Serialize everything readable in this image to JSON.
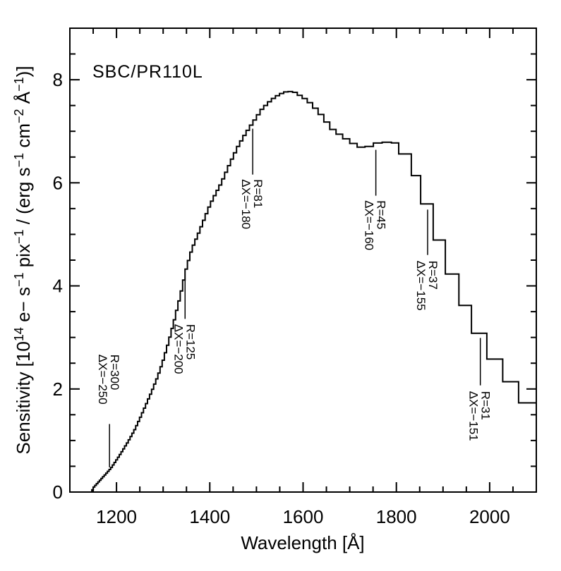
{
  "page": {
    "background": "#ffffff",
    "foreground": "#000000"
  },
  "chart_data": {
    "type": "line",
    "subtype": "step-histogram spectral sensitivity curve",
    "title": "SBC/PR110L",
    "xlabel": "Wavelength [Å]",
    "ylabel_plain": "Sensitivity [10¹⁴ e− s⁻¹ pix⁻¹ / (erg s⁻¹ cm⁻² Å⁻¹)]",
    "ylabel_segments": [
      {
        "t": "Sensitivity [10"
      },
      {
        "t": "14",
        "sup": true
      },
      {
        "t": " e− s"
      },
      {
        "t": "−1",
        "sup": true
      },
      {
        "t": " pix"
      },
      {
        "t": "−1",
        "sup": true
      },
      {
        "t": " / (erg s"
      },
      {
        "t": "−1",
        "sup": true
      },
      {
        "t": " cm"
      },
      {
        "t": "−2",
        "sup": true
      },
      {
        "t": " Å"
      },
      {
        "t": "−1",
        "sup": true
      },
      {
        "t": ")]"
      }
    ],
    "xlim": [
      1100,
      2100
    ],
    "ylim": [
      0,
      9
    ],
    "x_major_ticks": [
      1200,
      1400,
      1600,
      1800,
      2000
    ],
    "x_minor_step": 50,
    "y_major_ticks": [
      0,
      2,
      4,
      6,
      8
    ],
    "y_minor_step": 0.5,
    "grid": false,
    "frame": "box with inward ticks on all four sides",
    "curve": {
      "start_wavelength": 1147,
      "end_wavelength": 2100,
      "anchors": [
        [
          1147,
          0.02
        ],
        [
          1152,
          0.1
        ],
        [
          1162,
          0.2
        ],
        [
          1175,
          0.33
        ],
        [
          1188,
          0.46
        ],
        [
          1200,
          0.62
        ],
        [
          1212,
          0.79
        ],
        [
          1225,
          0.98
        ],
        [
          1238,
          1.19
        ],
        [
          1250,
          1.42
        ],
        [
          1262,
          1.67
        ],
        [
          1275,
          1.94
        ],
        [
          1288,
          2.23
        ],
        [
          1300,
          2.55
        ],
        [
          1312,
          2.92
        ],
        [
          1325,
          3.37
        ],
        [
          1338,
          3.85
        ],
        [
          1350,
          4.35
        ],
        [
          1362,
          4.72
        ],
        [
          1375,
          5.0
        ],
        [
          1388,
          5.29
        ],
        [
          1400,
          5.56
        ],
        [
          1412,
          5.78
        ],
        [
          1425,
          6.0
        ],
        [
          1438,
          6.27
        ],
        [
          1450,
          6.51
        ],
        [
          1462,
          6.73
        ],
        [
          1475,
          6.93
        ],
        [
          1488,
          7.11
        ],
        [
          1500,
          7.27
        ],
        [
          1512,
          7.43
        ],
        [
          1525,
          7.55
        ],
        [
          1538,
          7.65
        ],
        [
          1550,
          7.72
        ],
        [
          1565,
          7.77
        ],
        [
          1580,
          7.77
        ],
        [
          1590,
          7.71
        ],
        [
          1600,
          7.66
        ],
        [
          1612,
          7.58
        ],
        [
          1625,
          7.46
        ],
        [
          1638,
          7.33
        ],
        [
          1650,
          7.19
        ],
        [
          1662,
          7.05
        ],
        [
          1675,
          6.96
        ],
        [
          1688,
          6.88
        ],
        [
          1700,
          6.81
        ],
        [
          1712,
          6.74
        ],
        [
          1725,
          6.69
        ],
        [
          1735,
          6.68
        ],
        [
          1745,
          6.72
        ],
        [
          1758,
          6.77
        ],
        [
          1775,
          6.79
        ],
        [
          1790,
          6.78
        ],
        [
          1805,
          6.77
        ]
      ],
      "bin_width_control": [
        [
          1147,
          3.2
        ],
        [
          1250,
          4.2
        ],
        [
          1350,
          5.2
        ],
        [
          1450,
          6.5
        ],
        [
          1550,
          9
        ],
        [
          1650,
          13
        ],
        [
          1735,
          18
        ],
        [
          1805,
          22
        ]
      ],
      "explicit_bins": [
        [
          1805,
          6.56
        ],
        [
          1832,
          6.14
        ],
        [
          1852,
          5.59
        ],
        [
          1879,
          4.89
        ],
        [
          1905,
          4.23
        ],
        [
          1934,
          3.62
        ],
        [
          1961,
          3.08
        ],
        [
          1994,
          2.58
        ],
        [
          2028,
          2.14
        ],
        [
          2062,
          1.73
        ]
      ]
    },
    "annotations": [
      {
        "wavelength": 1185,
        "resolution": "R=300",
        "delta_x": "ΔX=−250",
        "line_v": [
          1.32,
          0.48
        ],
        "text_top_v": 2.67
      },
      {
        "wavelength": 1347,
        "resolution": "R=125",
        "delta_x": "ΔX=−200",
        "line_v": [
          4.25,
          3.36
        ],
        "text_top_v": 3.26
      },
      {
        "wavelength": 1492,
        "resolution": "R=81",
        "delta_x": "ΔX=−180",
        "line_v": [
          7.05,
          6.16
        ],
        "text_top_v": 6.07
      },
      {
        "wavelength": 1756,
        "resolution": "R=45",
        "delta_x": "ΔX=−160",
        "line_v": [
          6.64,
          5.75
        ],
        "text_top_v": 5.66
      },
      {
        "wavelength": 1867,
        "resolution": "R=37",
        "delta_x": "ΔX=−155",
        "line_v": [
          5.48,
          4.6
        ],
        "text_top_v": 4.49
      },
      {
        "wavelength": 1980,
        "resolution": "R=31",
        "delta_x": "ΔX=−151",
        "line_v": [
          2.99,
          2.07
        ],
        "text_top_v": 1.96
      }
    ]
  }
}
